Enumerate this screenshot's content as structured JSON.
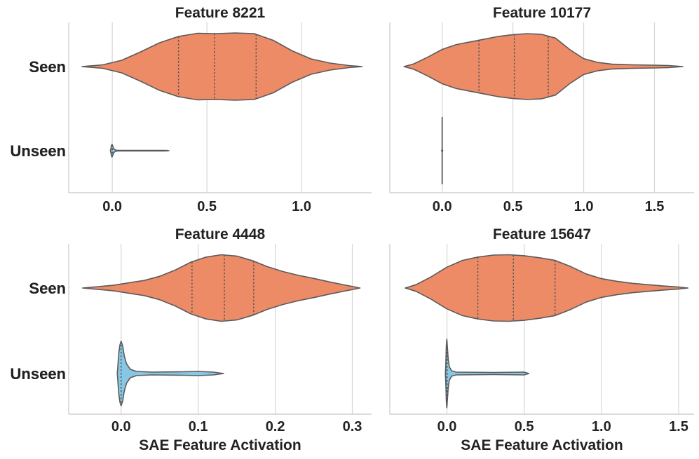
{
  "colors": {
    "seen": "#ec8b66",
    "unseen": "#87c7e4"
  },
  "chart_data": [
    {
      "type": "violin",
      "title": "Feature 8221",
      "xlabel": "",
      "categories": [
        "Seen",
        "Unseen"
      ],
      "xlim": [
        -0.23,
        1.37
      ],
      "xticks": [
        0.0,
        0.5,
        1.0
      ],
      "xtick_labels": [
        "0.0",
        "0.5",
        "1.0"
      ],
      "series": [
        {
          "category": "Seen",
          "min": -0.16,
          "max": 1.32,
          "quartiles": [
            0.35,
            0.54,
            0.76
          ],
          "profile": [
            [
              -0.16,
              0
            ],
            [
              -0.05,
              0.05
            ],
            [
              0.05,
              0.18
            ],
            [
              0.15,
              0.42
            ],
            [
              0.25,
              0.68
            ],
            [
              0.35,
              0.86
            ],
            [
              0.45,
              0.95
            ],
            [
              0.55,
              0.94
            ],
            [
              0.65,
              0.96
            ],
            [
              0.75,
              0.94
            ],
            [
              0.85,
              0.75
            ],
            [
              0.95,
              0.45
            ],
            [
              1.05,
              0.22
            ],
            [
              1.15,
              0.1
            ],
            [
              1.25,
              0.03
            ],
            [
              1.32,
              0
            ]
          ]
        },
        {
          "category": "Unseen",
          "min": -0.01,
          "max": 0.3,
          "quartiles": [
            0.0,
            0.0,
            0.0
          ],
          "profile": [
            [
              -0.01,
              0
            ],
            [
              -0.007,
              0.35
            ],
            [
              -0.004,
              0.82
            ],
            [
              -0.001,
              1.0
            ],
            [
              0.003,
              0.7
            ],
            [
              0.008,
              0.3
            ],
            [
              0.016,
              0.12
            ],
            [
              0.03,
              0.05
            ],
            [
              0.08,
              0.04
            ],
            [
              0.2,
              0.04
            ],
            [
              0.27,
              0.04
            ],
            [
              0.29,
              0.03
            ],
            [
              0.3,
              0
            ]
          ]
        }
      ]
    },
    {
      "type": "violin",
      "title": "Feature 10177",
      "xlabel": "",
      "categories": [
        "Seen",
        "Unseen"
      ],
      "xlim": [
        -0.37,
        1.78
      ],
      "xticks": [
        0.0,
        0.5,
        1.0,
        1.5
      ],
      "xtick_labels": [
        "0.0",
        "0.5",
        "1.0",
        "1.5"
      ],
      "series": [
        {
          "category": "Seen",
          "min": -0.27,
          "max": 1.7,
          "quartiles": [
            0.26,
            0.51,
            0.75
          ],
          "profile": [
            [
              -0.27,
              0
            ],
            [
              -0.2,
              0.08
            ],
            [
              -0.1,
              0.28
            ],
            [
              0.0,
              0.5
            ],
            [
              0.1,
              0.64
            ],
            [
              0.2,
              0.72
            ],
            [
              0.3,
              0.8
            ],
            [
              0.4,
              0.88
            ],
            [
              0.5,
              0.93
            ],
            [
              0.6,
              0.96
            ],
            [
              0.7,
              0.94
            ],
            [
              0.8,
              0.83
            ],
            [
              0.9,
              0.5
            ],
            [
              1.0,
              0.23
            ],
            [
              1.1,
              0.12
            ],
            [
              1.2,
              0.07
            ],
            [
              1.35,
              0.05
            ],
            [
              1.5,
              0.04
            ],
            [
              1.6,
              0.03
            ],
            [
              1.7,
              0
            ]
          ]
        },
        {
          "category": "Unseen",
          "min": 0.0,
          "max": 0.0,
          "quartiles": [
            0.0,
            0.0,
            0.0
          ],
          "profile": []
        }
      ]
    },
    {
      "type": "violin",
      "title": "Feature 4448",
      "xlabel": "SAE Feature Activation",
      "categories": [
        "Seen",
        "Unseen"
      ],
      "xlim": [
        -0.068,
        0.325
      ],
      "xticks": [
        0.0,
        0.1,
        0.2,
        0.3
      ],
      "xtick_labels": [
        "0.0",
        "0.1",
        "0.2",
        "0.3"
      ],
      "series": [
        {
          "category": "Seen",
          "min": -0.05,
          "max": 0.31,
          "quartiles": [
            0.092,
            0.134,
            0.172
          ],
          "profile": [
            [
              -0.05,
              0
            ],
            [
              -0.03,
              0.04
            ],
            [
              -0.01,
              0.08
            ],
            [
              0.01,
              0.15
            ],
            [
              0.03,
              0.22
            ],
            [
              0.05,
              0.34
            ],
            [
              0.07,
              0.52
            ],
            [
              0.09,
              0.75
            ],
            [
              0.11,
              0.9
            ],
            [
              0.13,
              0.97
            ],
            [
              0.15,
              0.93
            ],
            [
              0.17,
              0.8
            ],
            [
              0.19,
              0.62
            ],
            [
              0.21,
              0.48
            ],
            [
              0.23,
              0.37
            ],
            [
              0.25,
              0.28
            ],
            [
              0.27,
              0.18
            ],
            [
              0.29,
              0.09
            ],
            [
              0.31,
              0
            ]
          ]
        },
        {
          "category": "Unseen",
          "min": -0.005,
          "max": 0.133,
          "quartiles": [
            0.0,
            0.0,
            0.0
          ],
          "profile": [
            [
              -0.005,
              0
            ],
            [
              -0.004,
              0.3
            ],
            [
              -0.003,
              0.6
            ],
            [
              -0.0015,
              0.82
            ],
            [
              0.0,
              0.92
            ],
            [
              0.002,
              0.8
            ],
            [
              0.004,
              0.52
            ],
            [
              0.007,
              0.28
            ],
            [
              0.012,
              0.12
            ],
            [
              0.02,
              0.06
            ],
            [
              0.04,
              0.04
            ],
            [
              0.08,
              0.05
            ],
            [
              0.1,
              0.06
            ],
            [
              0.12,
              0.04
            ],
            [
              0.133,
              0
            ]
          ]
        }
      ]
    },
    {
      "type": "violin",
      "title": "Feature 15647",
      "xlabel": "SAE Feature Activation",
      "categories": [
        "Seen",
        "Unseen"
      ],
      "xlim": [
        -0.37,
        1.6
      ],
      "xticks": [
        0.0,
        0.5,
        1.0,
        1.5
      ],
      "xtick_labels": [
        "0.0",
        "0.5",
        "1.0",
        "1.5"
      ],
      "series": [
        {
          "category": "Seen",
          "min": -0.27,
          "max": 1.56,
          "quartiles": [
            0.2,
            0.43,
            0.7
          ],
          "profile": [
            [
              -0.27,
              0
            ],
            [
              -0.2,
              0.1
            ],
            [
              -0.1,
              0.34
            ],
            [
              0.0,
              0.62
            ],
            [
              0.1,
              0.82
            ],
            [
              0.2,
              0.92
            ],
            [
              0.3,
              0.98
            ],
            [
              0.4,
              0.99
            ],
            [
              0.5,
              0.96
            ],
            [
              0.6,
              0.9
            ],
            [
              0.7,
              0.82
            ],
            [
              0.8,
              0.64
            ],
            [
              0.9,
              0.42
            ],
            [
              1.0,
              0.28
            ],
            [
              1.1,
              0.2
            ],
            [
              1.2,
              0.14
            ],
            [
              1.3,
              0.1
            ],
            [
              1.4,
              0.06
            ],
            [
              1.5,
              0.03
            ],
            [
              1.56,
              0
            ]
          ]
        },
        {
          "category": "Unseen",
          "min": -0.01,
          "max": 0.53,
          "quartiles": [
            0.0,
            0.0,
            0.0
          ],
          "profile": [
            [
              -0.01,
              0
            ],
            [
              -0.007,
              0.35
            ],
            [
              -0.004,
              0.8
            ],
            [
              -0.001,
              1.0
            ],
            [
              0.003,
              0.75
            ],
            [
              0.008,
              0.42
            ],
            [
              0.015,
              0.2
            ],
            [
              0.03,
              0.08
            ],
            [
              0.06,
              0.04
            ],
            [
              0.3,
              0.03
            ],
            [
              0.5,
              0.04
            ],
            [
              0.53,
              0
            ]
          ]
        }
      ]
    }
  ]
}
